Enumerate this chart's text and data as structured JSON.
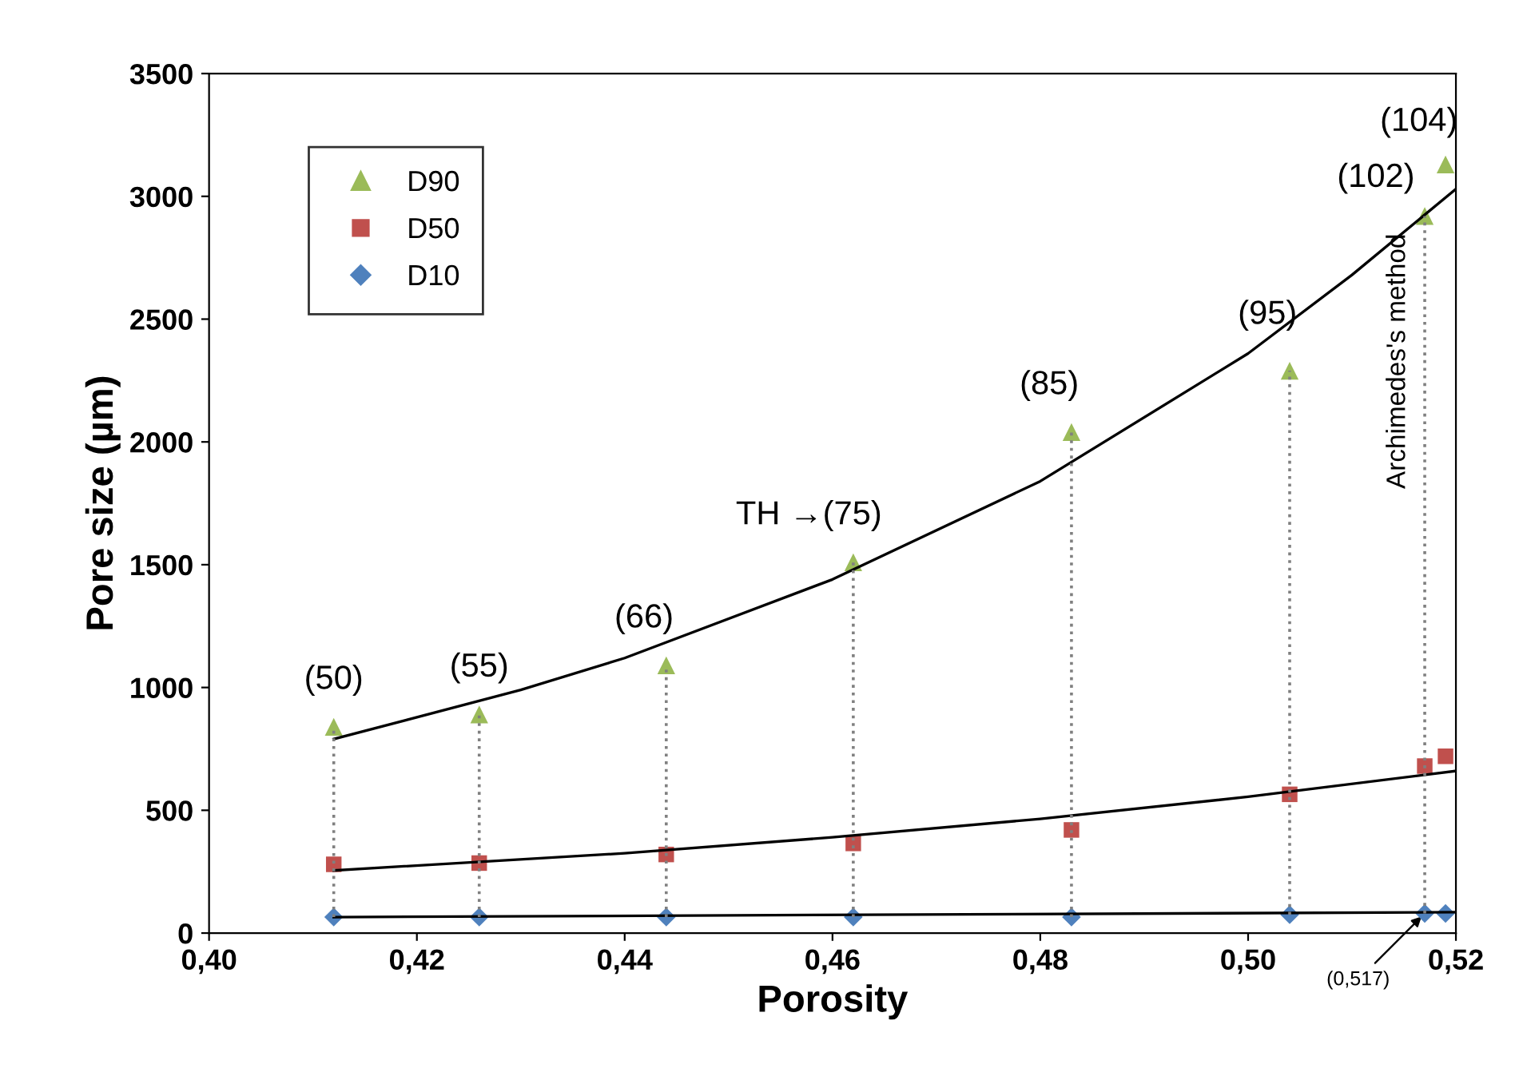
{
  "chart_data": {
    "type": "scatter",
    "xlabel": "Porosity",
    "ylabel": "Pore size (µm)",
    "xlim": [
      0.4,
      0.52
    ],
    "ylim": [
      0,
      3500
    ],
    "xticks": [
      {
        "value": 0.4,
        "label": "0,40"
      },
      {
        "value": 0.42,
        "label": "0,42"
      },
      {
        "value": 0.44,
        "label": "0,44"
      },
      {
        "value": 0.46,
        "label": "0,46"
      },
      {
        "value": 0.48,
        "label": "0,48"
      },
      {
        "value": 0.5,
        "label": "0,50"
      },
      {
        "value": 0.52,
        "label": "0,52"
      }
    ],
    "yticks": [
      0,
      500,
      1000,
      1500,
      2000,
      2500,
      3000,
      3500
    ],
    "grid": false,
    "legend": "top left",
    "series": [
      {
        "name": "D90",
        "color": "#9bbb59",
        "marker": "triangle",
        "x": [
          0.412,
          0.426,
          0.444,
          0.462,
          0.483,
          0.504,
          0.517,
          0.519
        ],
        "values": [
          840,
          890,
          1090,
          1510,
          2040,
          2290,
          2920,
          3130
        ]
      },
      {
        "name": "D50",
        "color": "#c0504d",
        "marker": "square",
        "x": [
          0.412,
          0.426,
          0.444,
          0.462,
          0.483,
          0.504,
          0.517,
          0.519
        ],
        "values": [
          280,
          285,
          320,
          365,
          420,
          565,
          680,
          720
        ]
      },
      {
        "name": "D10",
        "color": "#4f81bd",
        "marker": "diamond",
        "x": [
          0.412,
          0.426,
          0.444,
          0.462,
          0.483,
          0.504,
          0.517,
          0.519
        ],
        "values": [
          65,
          65,
          65,
          65,
          65,
          75,
          80,
          80
        ]
      },
      {
        "type": "line",
        "color": "#000000",
        "marker": "none",
        "line_style": "solid",
        "x": [
          0.412,
          0.43,
          0.44,
          0.46,
          0.48,
          0.5,
          0.51,
          0.52
        ],
        "values": [
          790,
          990,
          1120,
          1440,
          1840,
          2360,
          2680,
          3030
        ]
      },
      {
        "type": "line",
        "color": "#000000",
        "marker": "none",
        "line_style": "solid",
        "x": [
          0.412,
          0.44,
          0.46,
          0.48,
          0.5,
          0.52
        ],
        "values": [
          255,
          325,
          390,
          465,
          555,
          660
        ]
      },
      {
        "type": "line",
        "color": "#000000",
        "marker": "none",
        "line_style": "solid",
        "x": [
          0.412,
          0.52
        ],
        "values": [
          65,
          85
        ]
      },
      {
        "type": "line",
        "color": "#808080",
        "marker": "none",
        "line_style": "dotted",
        "x": [
          0.412,
          0.412
        ],
        "values": [
          65,
          840
        ]
      },
      {
        "type": "line",
        "color": "#808080",
        "marker": "none",
        "line_style": "dotted",
        "x": [
          0.426,
          0.426
        ],
        "values": [
          65,
          890
        ]
      },
      {
        "type": "line",
        "color": "#808080",
        "marker": "none",
        "line_style": "dotted",
        "x": [
          0.444,
          0.444
        ],
        "values": [
          65,
          1090
        ]
      },
      {
        "type": "line",
        "color": "#808080",
        "marker": "none",
        "line_style": "dotted",
        "x": [
          0.462,
          0.462
        ],
        "values": [
          65,
          1510
        ]
      },
      {
        "type": "line",
        "color": "#808080",
        "marker": "none",
        "line_style": "dotted",
        "x": [
          0.483,
          0.483
        ],
        "values": [
          65,
          2040
        ]
      },
      {
        "type": "line",
        "color": "#808080",
        "marker": "none",
        "line_style": "dotted",
        "x": [
          0.504,
          0.504
        ],
        "values": [
          75,
          2290
        ]
      },
      {
        "type": "line",
        "color": "#808080",
        "marker": "none",
        "line_style": "dotted",
        "x": [
          0.517,
          0.517
        ],
        "values": [
          80,
          2920
        ]
      }
    ],
    "annotations": [
      {
        "text": "(50)",
        "x": 0.412,
        "y": 840
      },
      {
        "text": "(55)",
        "x": 0.426,
        "y": 890
      },
      {
        "text": "(66)",
        "x": 0.444,
        "y": 1090
      },
      {
        "text": "TH →(75)",
        "x": 0.462,
        "y": 1510
      },
      {
        "text": "(85)",
        "x": 0.483,
        "y": 2040
      },
      {
        "text": "(95)",
        "x": 0.504,
        "y": 2290
      },
      {
        "text": "(102)",
        "x": 0.517,
        "y": 2920
      },
      {
        "text": "(104)",
        "x": 0.519,
        "y": 3130
      },
      {
        "text": "Archimedes's method",
        "x": 0.517,
        "y": 2920
      },
      {
        "text": "(0,517)",
        "x": 0.517,
        "y": 80
      }
    ]
  }
}
